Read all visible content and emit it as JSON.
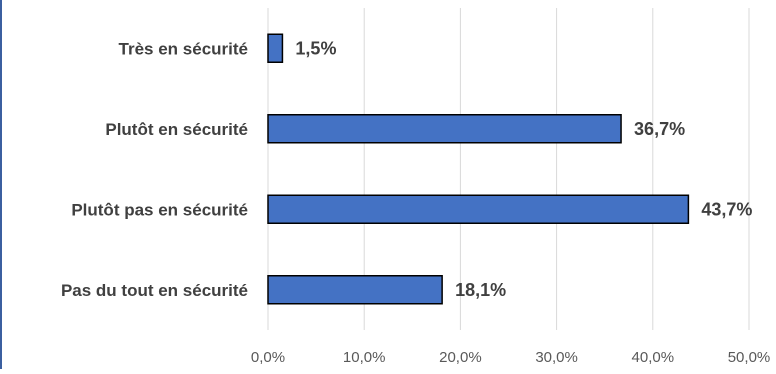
{
  "chart_data": {
    "type": "bar",
    "orientation": "horizontal",
    "categories": [
      "Très en sécurité",
      "Plutôt en sécurité",
      "Plutôt pas en sécurité",
      "Pas du tout en sécurité"
    ],
    "values": [
      1.5,
      36.7,
      43.7,
      18.1
    ],
    "data_labels": [
      "1,5%",
      "36,7%",
      "43,7%",
      "18,1%"
    ],
    "x_ticks": [
      "0,0%",
      "10,0%",
      "20,0%",
      "30,0%",
      "40,0%",
      "50,0%"
    ],
    "xlim": [
      0,
      50
    ],
    "title": "",
    "xlabel": "",
    "ylabel": "",
    "grid": "vertical",
    "legend": "none",
    "bar_color": "#4472c4"
  }
}
